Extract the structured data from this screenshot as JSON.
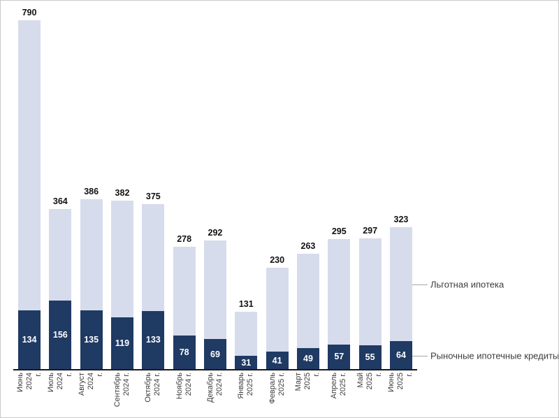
{
  "chart_data": {
    "type": "bar",
    "subtype": "stacked-column",
    "title": "",
    "categories": [
      "Июнь 2024 г.",
      "Июль 2024 г.",
      "Август 2024 г.",
      "Сентябрь 2024 г.",
      "Октябрь 2024 г.",
      "Ноябрь 2024 г.",
      "Декабрь 2024 г.",
      "Январь 2025 г.",
      "Февраль 2025 г.",
      "Март 2025 г.",
      "Апрель 2025 г.",
      "Май 2025 г.",
      "Июнь 2025 г."
    ],
    "category_label_lines": [
      [
        "Июнь",
        "2024",
        "г."
      ],
      [
        "Июль",
        "2024",
        "г."
      ],
      [
        "Август",
        "2024",
        "г."
      ],
      [
        "Сентябрь",
        "2024 г."
      ],
      [
        "Октябрь",
        "2024 г."
      ],
      [
        "Ноябрь",
        "2024 г."
      ],
      [
        "Декабрь",
        "2024 г."
      ],
      [
        "Январь",
        "2025 г."
      ],
      [
        "Февраль",
        "2025 г."
      ],
      [
        "Март",
        "2025",
        "г."
      ],
      [
        "Апрель",
        "2025 г."
      ],
      [
        "Май",
        "2025",
        "г."
      ],
      [
        "Июнь",
        "2025",
        "г."
      ]
    ],
    "total_labels": [
      790,
      364,
      386,
      382,
      375,
      278,
      292,
      131,
      230,
      263,
      295,
      297,
      323
    ],
    "series": [
      {
        "name": "Рыночные ипотечные кредиты",
        "segment": "bottom",
        "color": "#1f3a63",
        "value_label_color": "#ffffff",
        "values": [
          134,
          156,
          135,
          119,
          133,
          78,
          69,
          31,
          41,
          49,
          57,
          55,
          64
        ]
      },
      {
        "name": "Льготная ипотека",
        "segment": "top",
        "color": "#d6dcec"
      }
    ],
    "ylim": [
      0,
      810
    ],
    "grid": false,
    "y_axis_hidden": true,
    "legend": {
      "position": "right",
      "leader_line_color": "#a6a6a6",
      "entries": [
        {
          "label": "Льготная ипотека",
          "target": "top-segment"
        },
        {
          "label": "Рыночные ипотечные кредиты",
          "target": "bottom-segment"
        }
      ]
    }
  },
  "colors": {
    "background": "#ffffff",
    "border": "#c9c9c9",
    "axis_line": "#1a1a1a",
    "total_label": "#111111",
    "axis_label": "#404040",
    "legend_label": "#3d3d3d"
  }
}
